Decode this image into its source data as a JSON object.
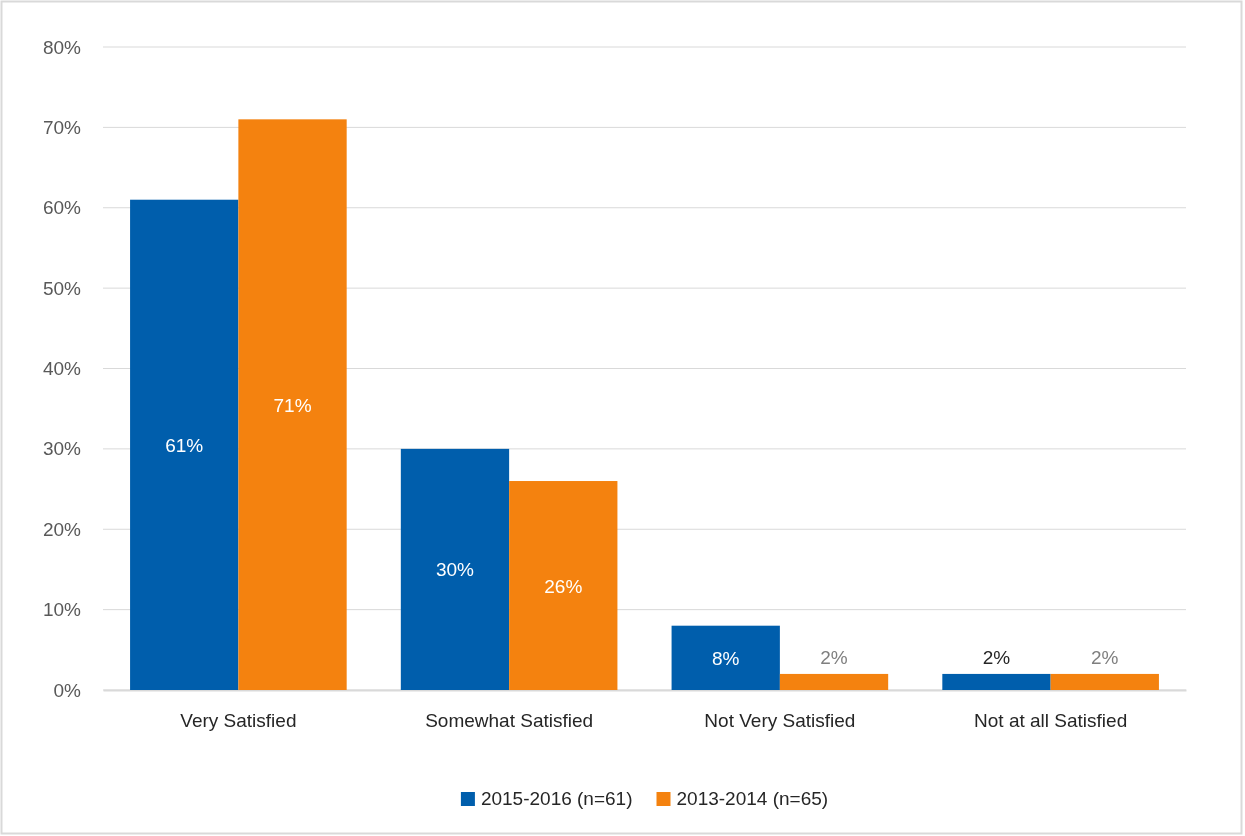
{
  "chart_data": {
    "type": "bar",
    "categories": [
      "Very Satisfied",
      "Somewhat Satisfied",
      "Not Very Satisfied",
      "Not at all Satisfied"
    ],
    "series": [
      {
        "name": "2015-2016 (n=61)",
        "color": "#005eac",
        "values": [
          61,
          30,
          8,
          2
        ],
        "value_labels": [
          "61%",
          "30%",
          "8%",
          "2%"
        ]
      },
      {
        "name": "2013-2014 (n=65)",
        "color": "#f4820f",
        "values": [
          71,
          26,
          2,
          2
        ],
        "value_labels": [
          "71%",
          "26%",
          "2%",
          "2%"
        ]
      }
    ],
    "ylim": [
      0,
      80
    ],
    "yticks": [
      {
        "value": 0,
        "label": "0%"
      },
      {
        "value": 10,
        "label": "10%"
      },
      {
        "value": 20,
        "label": "20%"
      },
      {
        "value": 30,
        "label": "30%"
      },
      {
        "value": 40,
        "label": "40%"
      },
      {
        "value": 50,
        "label": "50%"
      },
      {
        "value": 60,
        "label": "60%"
      },
      {
        "value": 70,
        "label": "70%"
      },
      {
        "value": 80,
        "label": "80%"
      }
    ],
    "grid": "y",
    "legend": "bottom"
  }
}
